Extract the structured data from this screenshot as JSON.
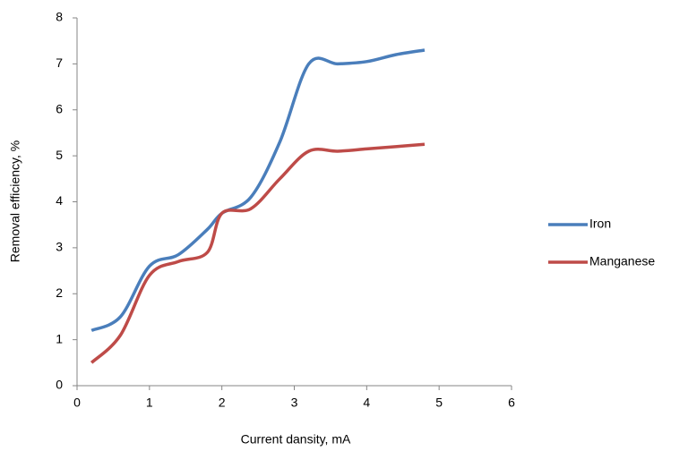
{
  "chart_data": {
    "type": "line",
    "x_label": "Current dansity, mA",
    "y_label": "Removal efficiency, %",
    "x": [
      0.2,
      0.6,
      1.0,
      1.4,
      1.8,
      2.0,
      2.4,
      2.8,
      3.2,
      3.6,
      4.0,
      4.4,
      4.8
    ],
    "series": [
      {
        "name": "Iron",
        "color": "#4a7ebb",
        "values": [
          1.2,
          1.5,
          2.6,
          2.85,
          3.4,
          3.75,
          4.1,
          5.3,
          7.0,
          7.0,
          7.05,
          7.2,
          7.3
        ]
      },
      {
        "name": "Manganese",
        "color": "#be4b48",
        "values": [
          0.5,
          1.1,
          2.4,
          2.7,
          2.9,
          3.75,
          3.85,
          4.5,
          5.1,
          5.1,
          5.15,
          5.2,
          5.25
        ]
      }
    ],
    "xlim": [
      0,
      6
    ],
    "xticks": [
      0,
      1,
      2,
      3,
      4,
      5,
      6
    ],
    "ylim": [
      0,
      8
    ],
    "yticks": [
      0,
      1,
      2,
      3,
      4,
      5,
      6,
      7,
      8
    ],
    "grid": false,
    "legend": "right"
  }
}
